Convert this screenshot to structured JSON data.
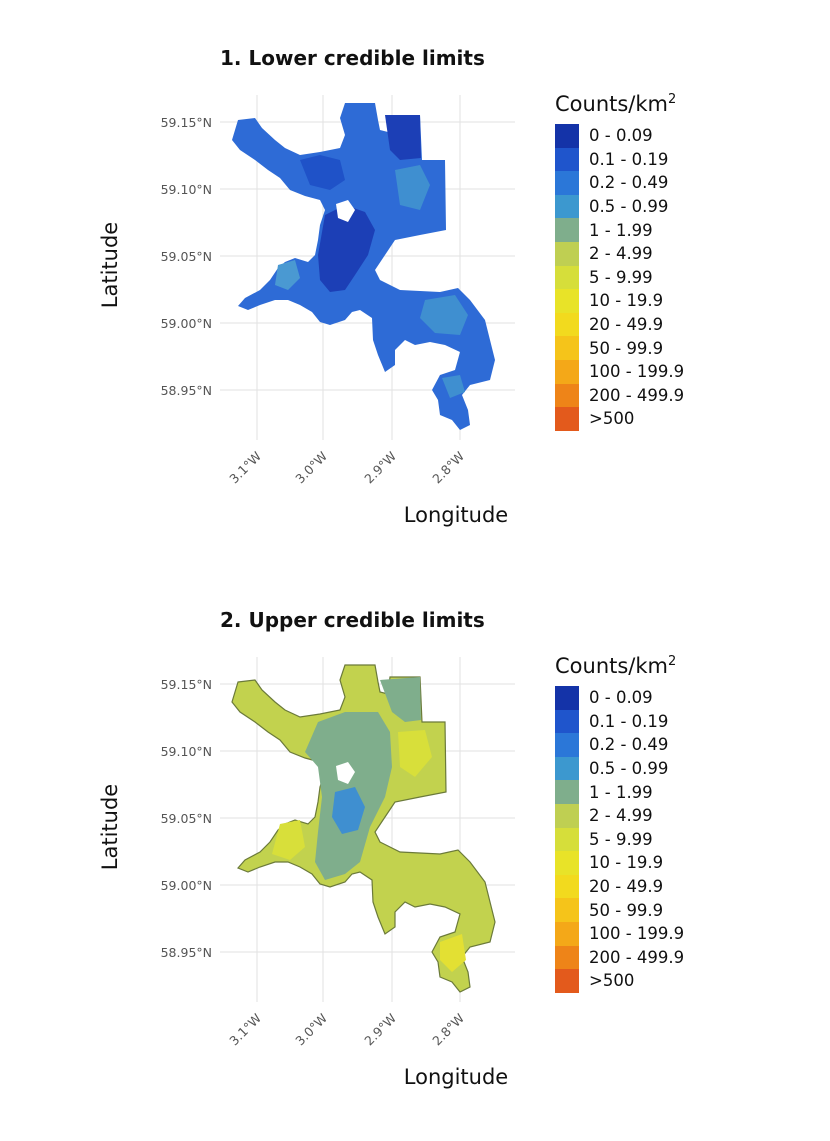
{
  "panels": [
    {
      "title": "1. Lower credible limits",
      "xlabel": "Longitude",
      "ylabel": "Latitude",
      "yticks": [
        "59.15°N",
        "59.10°N",
        "59.05°N",
        "59.00°N",
        "58.95°N"
      ],
      "xticks": [
        "3.1°W",
        "3.0°W",
        "2.9°W",
        "2.8°W"
      ],
      "legend_title": "Counts/km",
      "legend_title_sup": "2",
      "fill_colors": {
        "base": "#2E6BD6",
        "patch_dark": "#1C3FB6",
        "patch_mid": "#1F52C8",
        "patch_light": "#3F8FD0",
        "patch_lighter": "#4A99D2"
      }
    },
    {
      "title": "2. Upper credible limits",
      "xlabel": "Longitude",
      "ylabel": "Latitude",
      "yticks": [
        "59.15°N",
        "59.10°N",
        "59.05°N",
        "59.00°N",
        "58.95°N"
      ],
      "xticks": [
        "3.1°W",
        "3.0°W",
        "2.9°W",
        "2.8°W"
      ],
      "legend_title": "Counts/km",
      "legend_title_sup": "2",
      "fill_colors": {
        "base": "#C2D24E",
        "patch_dark": "#7FAE8C",
        "patch_mid": "#3F8FD0",
        "patch_light": "#D8DF3A",
        "patch_lighter": "#E3E033"
      }
    }
  ],
  "legend": [
    {
      "label": "0 - 0.09",
      "color": "#1433A8"
    },
    {
      "label": "0.1 - 0.19",
      "color": "#1F55CC"
    },
    {
      "label": "0.2 - 0.49",
      "color": "#2B77D8"
    },
    {
      "label": "0.5 - 0.99",
      "color": "#3C98CF"
    },
    {
      "label": "1 - 1.99",
      "color": "#7FAE8C"
    },
    {
      "label": "2 - 4.99",
      "color": "#BFCF52"
    },
    {
      "label": "5 - 9.99",
      "color": "#D6DE3A"
    },
    {
      "label": "10 - 19.9",
      "color": "#E8E328"
    },
    {
      "label": "20 - 49.9",
      "color": "#F2DA1E"
    },
    {
      "label": "50 - 99.9",
      "color": "#F5C41A"
    },
    {
      "label": "100 - 199.9",
      "color": "#F4A818"
    },
    {
      "label": "200 - 499.9",
      "color": "#EE8418"
    },
    {
      "label": ">500",
      "color": "#E35A1C"
    }
  ]
}
